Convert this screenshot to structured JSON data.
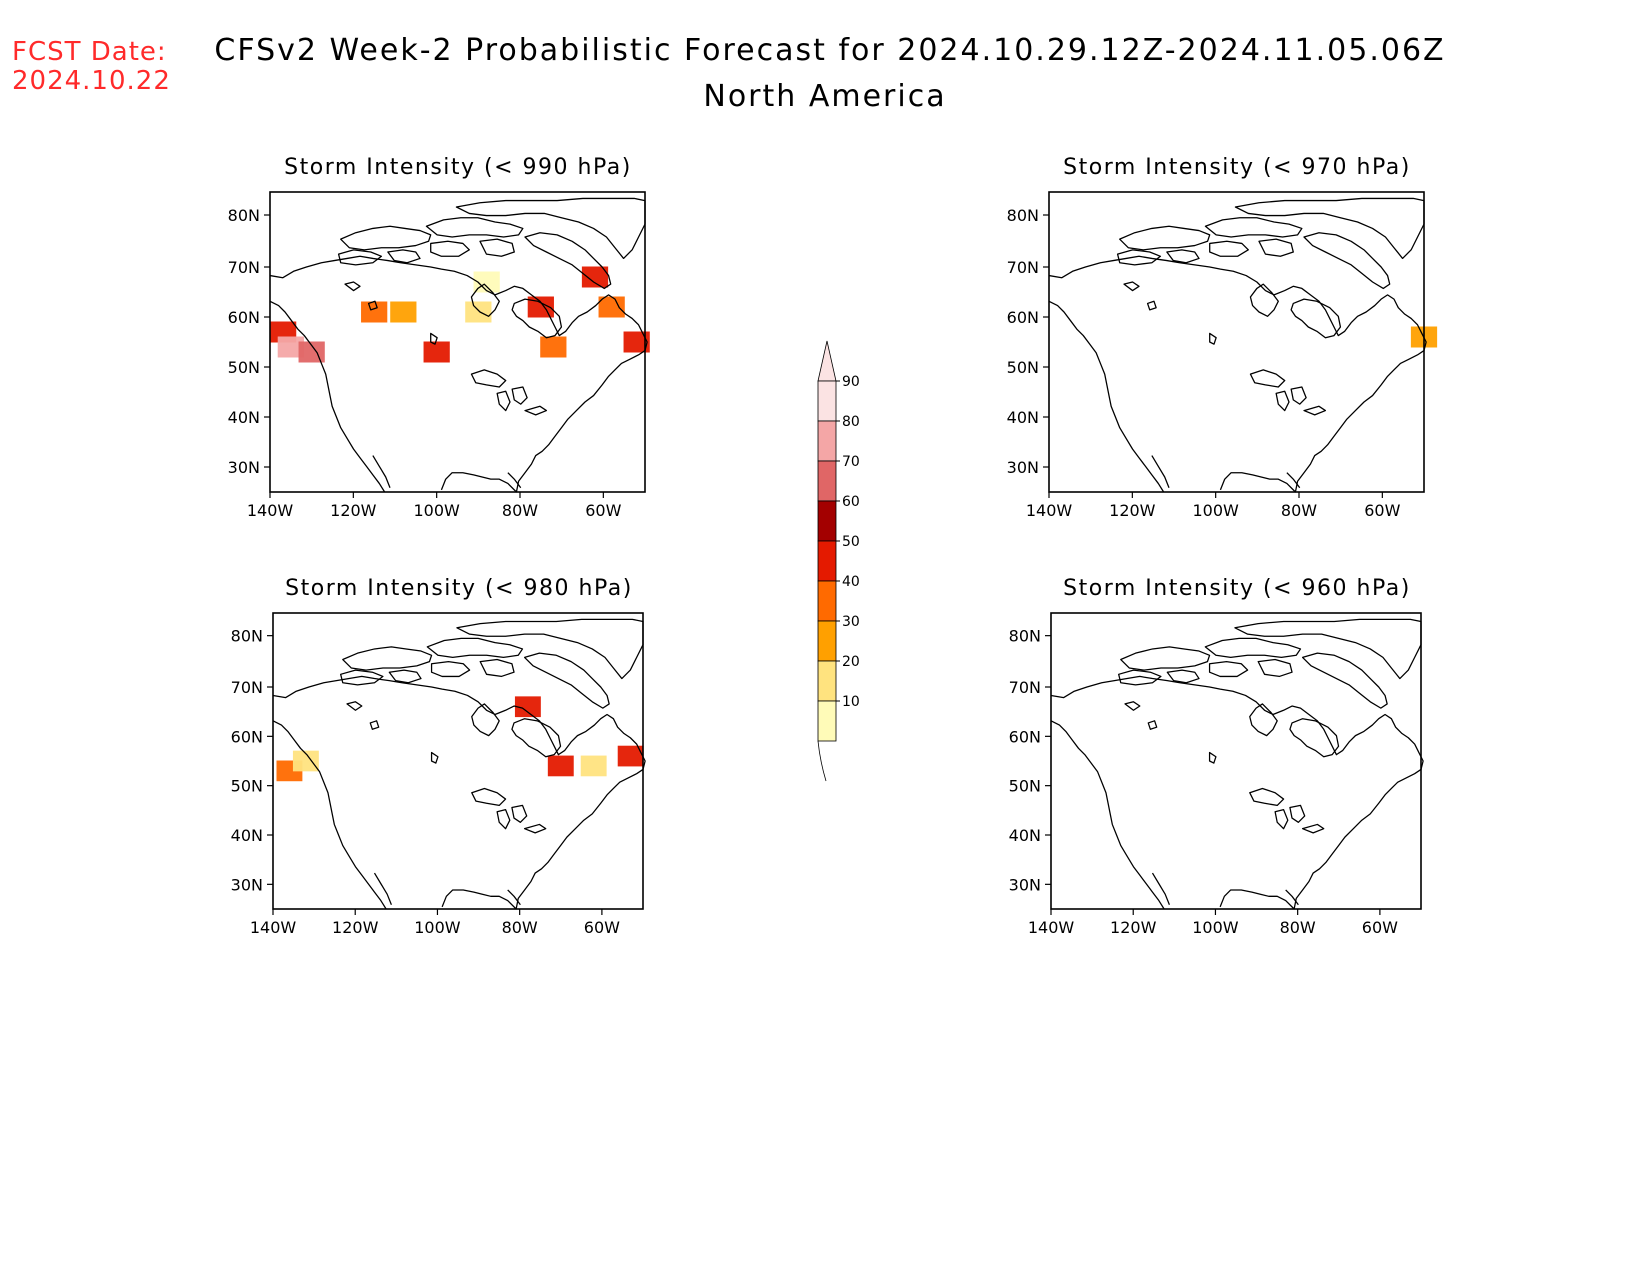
{
  "header": {
    "fcst_label": "FCST Date:",
    "fcst_date": "2024.10.22",
    "title_line1": "CFSv2 Week-2 Probabilistic Forecast for 2024.10.29.12Z-2024.11.05.06Z",
    "title_line2": "North America"
  },
  "axes": {
    "lat_ticks": [
      "80N",
      "70N",
      "60N",
      "50N",
      "40N",
      "30N"
    ],
    "lon_ticks": [
      "140W",
      "120W",
      "100W",
      "80W",
      "60W"
    ]
  },
  "panels": [
    {
      "id": "p990",
      "title": "Storm Intensity (< 990 hPa)"
    },
    {
      "id": "p970",
      "title": "Storm Intensity (< 970 hPa)"
    },
    {
      "id": "p980",
      "title": "Storm Intensity (< 980 hPa)"
    },
    {
      "id": "p960",
      "title": "Storm Intensity (< 960 hPa)"
    }
  ],
  "colorbar": {
    "levels": [
      "90",
      "80",
      "70",
      "60",
      "50",
      "40",
      "30",
      "20",
      "10"
    ],
    "colors": [
      "#fbe3e3",
      "#f4a6a6",
      "#e06666",
      "#a30000",
      "#e41a00",
      "#ff6a00",
      "#ffa000",
      "#ffe37f",
      "#fffbb8"
    ]
  },
  "shading": {
    "p990": [
      {
        "lon": -140,
        "lat": 57,
        "color": "#e41a00"
      },
      {
        "lon": -135,
        "lat": 54,
        "color": "#f4a6a6"
      },
      {
        "lon": -130,
        "lat": 53,
        "color": "#e06666"
      },
      {
        "lon": -115,
        "lat": 61,
        "color": "#ff6a00"
      },
      {
        "lon": -108,
        "lat": 61,
        "color": "#ffa000"
      },
      {
        "lon": -100,
        "lat": 53,
        "color": "#e41a00"
      },
      {
        "lon": -90,
        "lat": 61,
        "color": "#ffe37f"
      },
      {
        "lon": -88,
        "lat": 67,
        "color": "#fffbb8"
      },
      {
        "lon": -75,
        "lat": 62,
        "color": "#e41a00"
      },
      {
        "lon": -72,
        "lat": 54,
        "color": "#ff6a00"
      },
      {
        "lon": -62,
        "lat": 68,
        "color": "#e41a00"
      },
      {
        "lon": -58,
        "lat": 62,
        "color": "#ff6a00"
      },
      {
        "lon": -52,
        "lat": 55,
        "color": "#e41a00"
      }
    ],
    "p970": [
      {
        "lon": -50,
        "lat": 56,
        "color": "#ffa000"
      }
    ],
    "p980": [
      {
        "lon": -136,
        "lat": 53,
        "color": "#ff6a00"
      },
      {
        "lon": -132,
        "lat": 55,
        "color": "#ffe37f"
      },
      {
        "lon": -78,
        "lat": 66,
        "color": "#e41a00"
      },
      {
        "lon": -70,
        "lat": 54,
        "color": "#e41a00"
      },
      {
        "lon": -62,
        "lat": 54,
        "color": "#ffe37f"
      },
      {
        "lon": -53,
        "lat": 56,
        "color": "#e41a00"
      }
    ],
    "p960": []
  }
}
